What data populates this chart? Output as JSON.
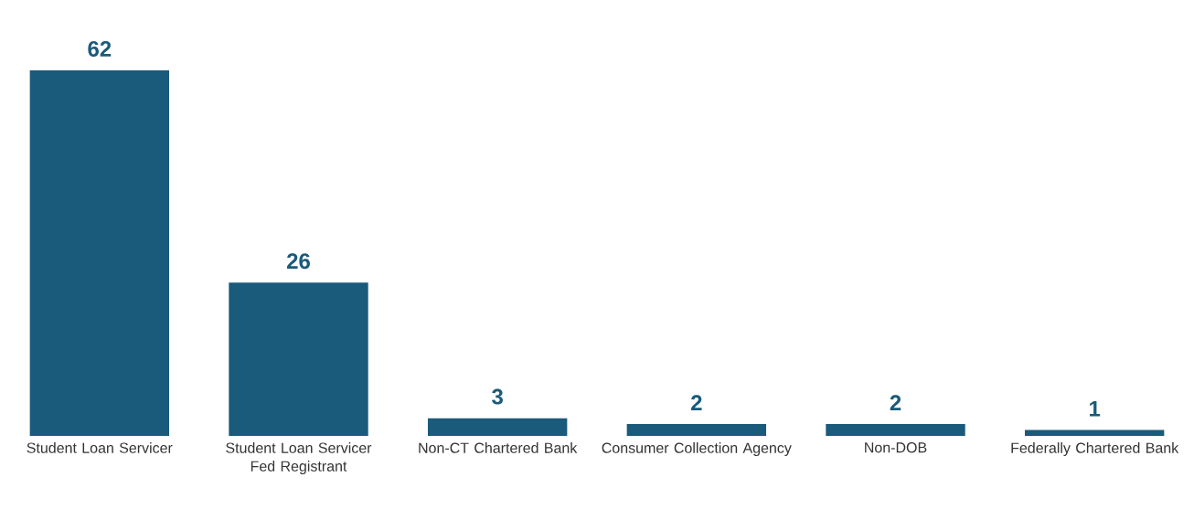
{
  "chart_data": {
    "type": "bar",
    "categories": [
      "Student Loan Servicer",
      "Student Loan Servicer Fed Registrant",
      "Non-CT Chartered Bank",
      "Consumer Collection Agency",
      "Non-DOB",
      "Federally Chartered Bank"
    ],
    "values": [
      62,
      26,
      3,
      2,
      2,
      1
    ],
    "color": "#1a5a7a",
    "data_labels": true
  }
}
